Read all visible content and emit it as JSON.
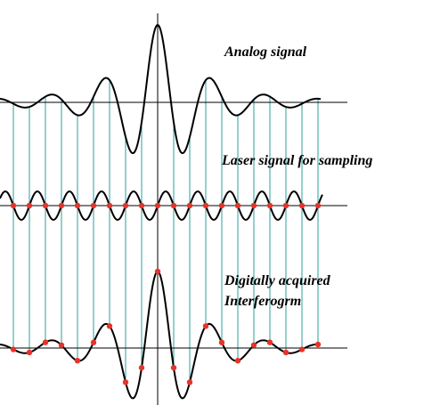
{
  "labels": {
    "analog": "Analog signal",
    "laser": "Laser signal for sampling",
    "digital_line1": "Digitally acquired",
    "digital_line2": "Interferogrm"
  }
}
